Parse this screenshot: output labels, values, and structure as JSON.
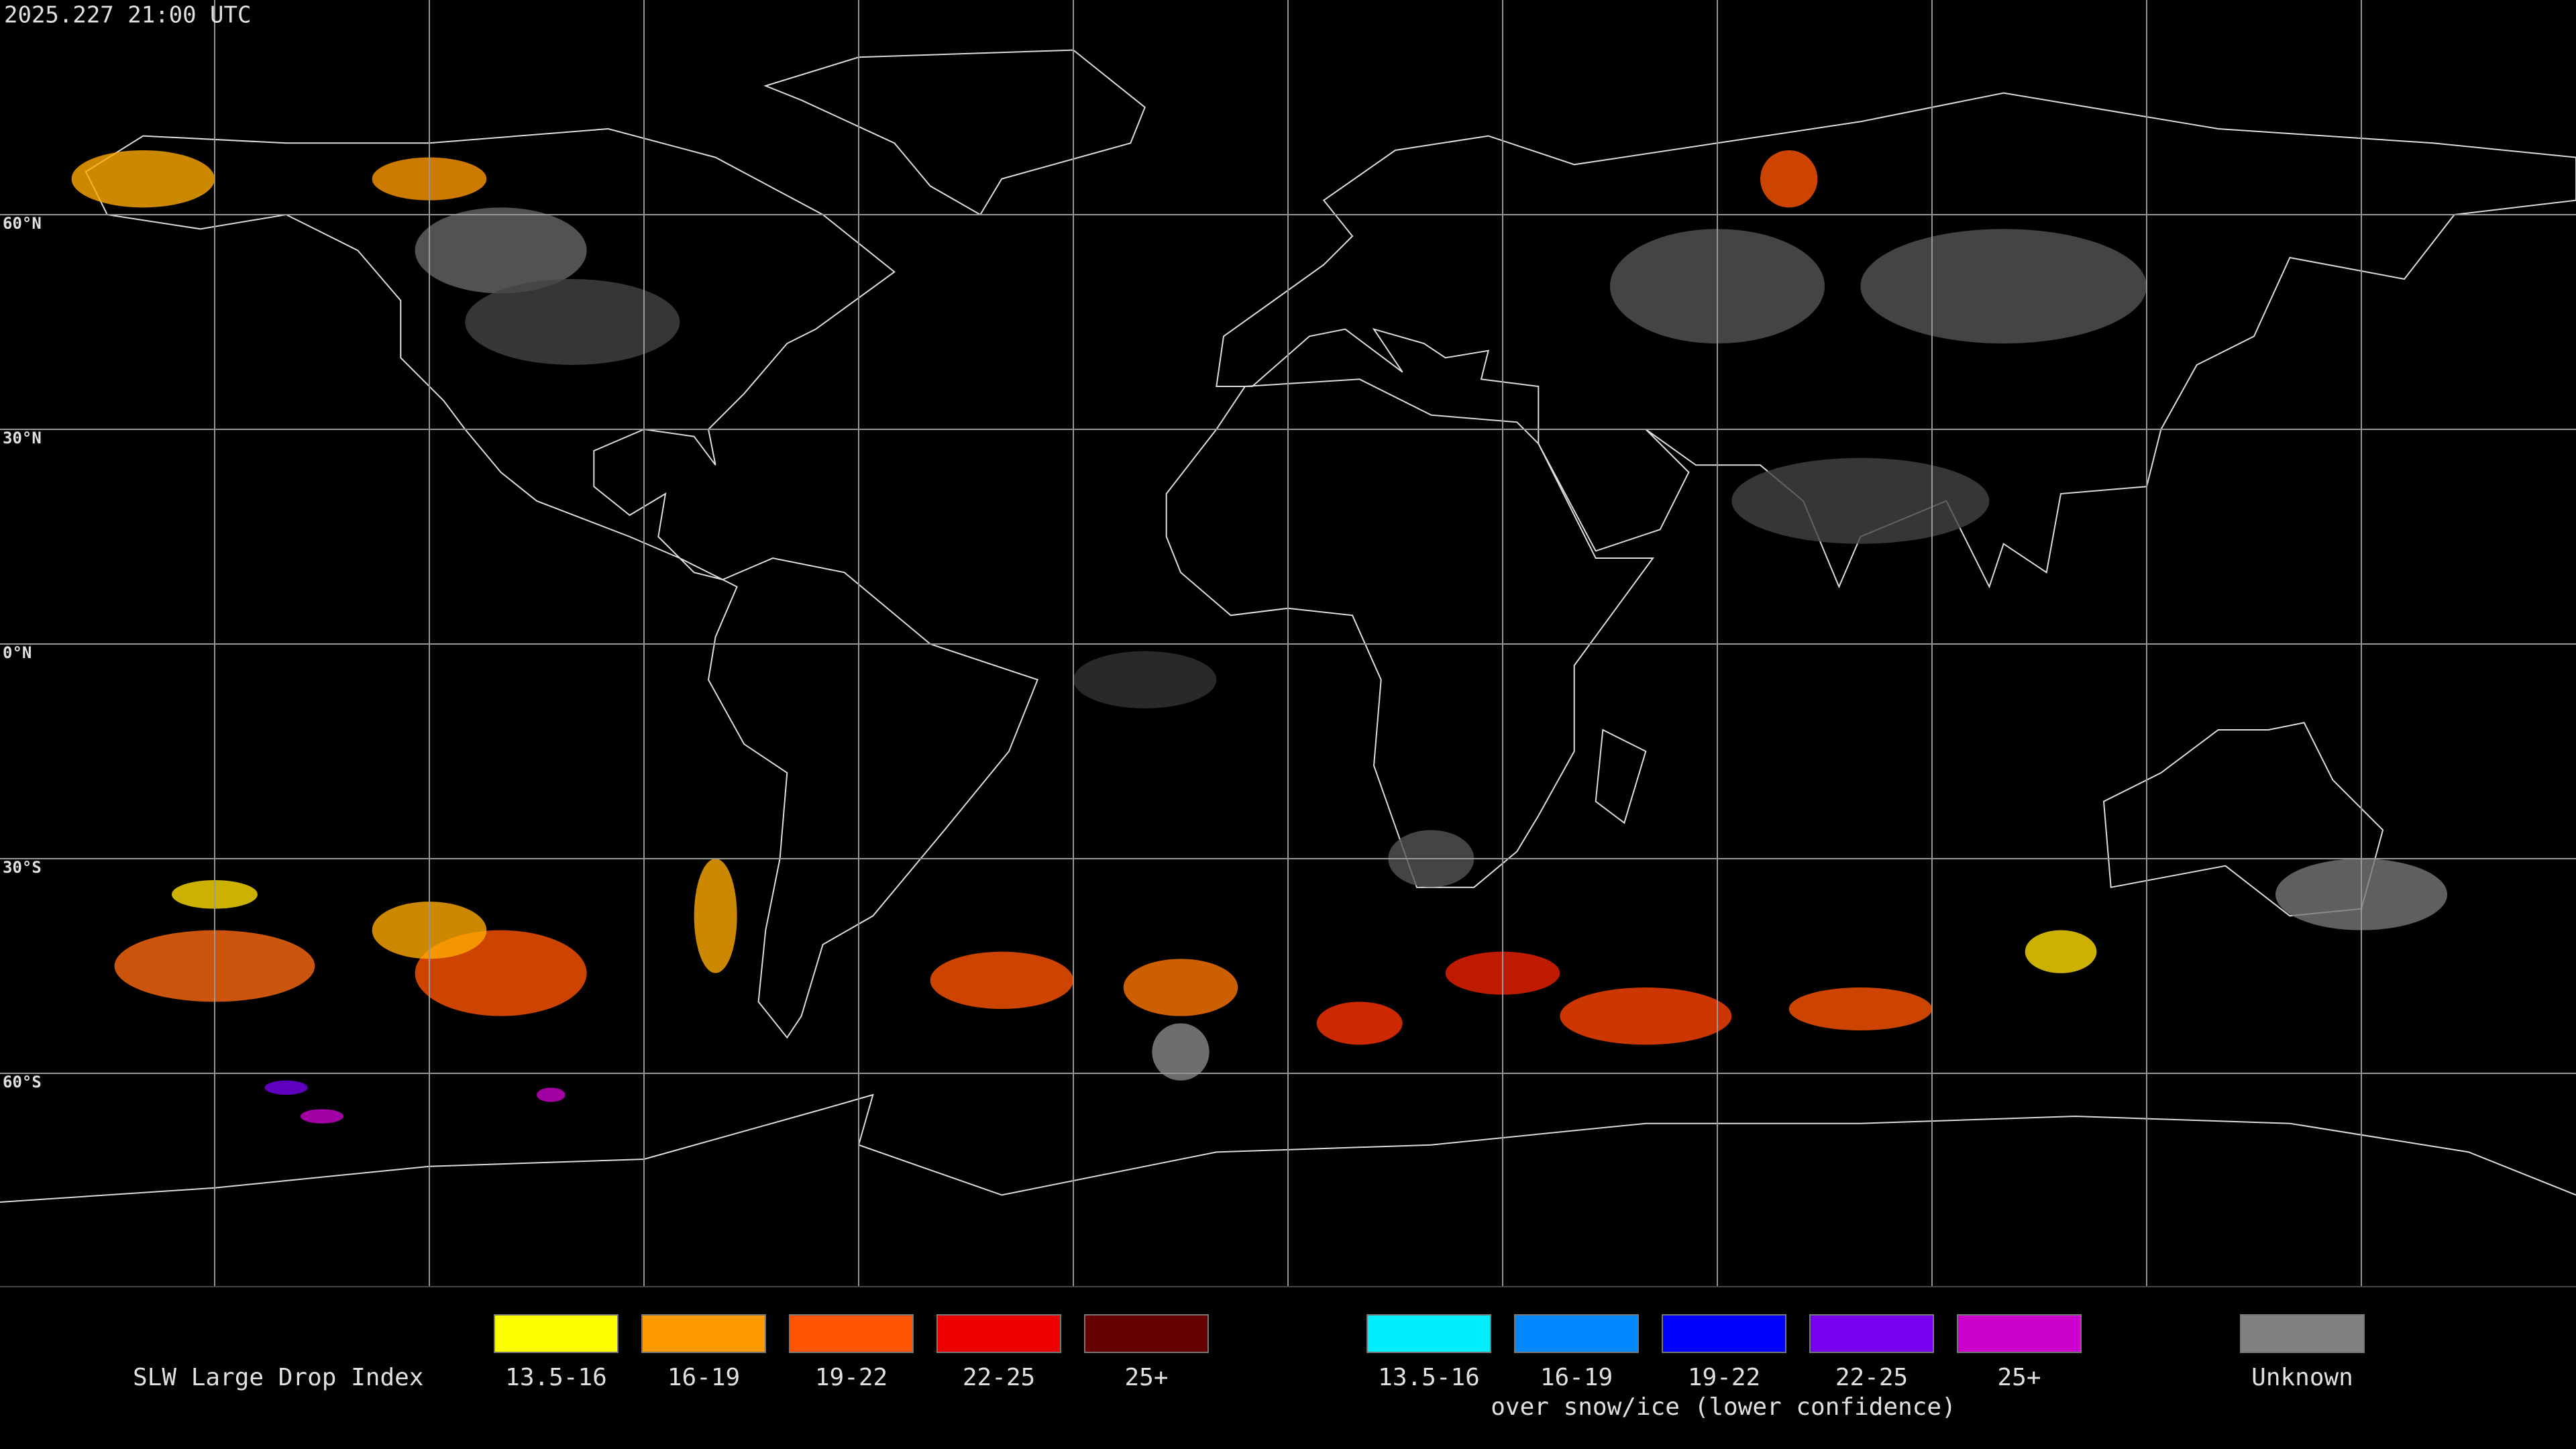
{
  "timestamp": "2025.227 21:00 UTC",
  "latitude_labels": [
    "60°N",
    "30°N",
    "0°N",
    "30°S",
    "60°S"
  ],
  "legend": {
    "title": "SLW Large Drop Index",
    "items": [
      {
        "label": "13.5-16",
        "color": "#ffff00"
      },
      {
        "label": "16-19",
        "color": "#ff9900"
      },
      {
        "label": "19-22",
        "color": "#ff5500"
      },
      {
        "label": "22-25",
        "color": "#ee0000"
      },
      {
        "label": "25+",
        "color": "#660000"
      }
    ],
    "snow_ice_items": [
      {
        "label": "13.5-16",
        "color": "#00eeff"
      },
      {
        "label": "16-19",
        "color": "#0088ff"
      },
      {
        "label": "19-22",
        "color": "#0000ff"
      },
      {
        "label": "22-25",
        "color": "#7700ee"
      },
      {
        "label": "25+",
        "color": "#cc00cc"
      }
    ],
    "snow_ice_note": "over snow/ice (lower confidence)",
    "unknown": {
      "label": "Unknown",
      "color": "#808080"
    }
  }
}
